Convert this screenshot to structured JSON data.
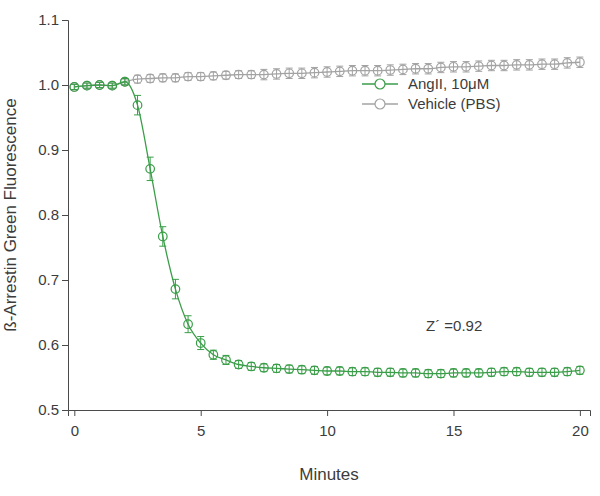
{
  "chart_data": {
    "type": "line",
    "x_label": "Minutes",
    "y_label": "ß-Arrestin Green Fluorescence",
    "annotation": "Z´ =0.92",
    "x": [
      0,
      0.5,
      1,
      1.5,
      2,
      2.5,
      3,
      3.5,
      4,
      4.5,
      5,
      5.5,
      6,
      6.5,
      7,
      7.5,
      8,
      8.5,
      9,
      9.5,
      10,
      10.5,
      11,
      11.5,
      12,
      12.5,
      13,
      13.5,
      14,
      14.5,
      15,
      15.5,
      16,
      16.5,
      17,
      17.5,
      18,
      18.5,
      19,
      19.5,
      20
    ],
    "series": [
      {
        "name": "AngII, 10μM",
        "color": "#3a9e48",
        "marker": "circle",
        "line_style": "solid",
        "values": [
          0.997,
          0.999,
          1.0,
          0.999,
          1.005,
          0.969,
          0.871,
          0.767,
          0.686,
          0.632,
          0.603,
          0.585,
          0.577,
          0.57,
          0.567,
          0.565,
          0.564,
          0.563,
          0.562,
          0.561,
          0.56,
          0.56,
          0.559,
          0.559,
          0.558,
          0.558,
          0.557,
          0.557,
          0.556,
          0.556,
          0.557,
          0.557,
          0.557,
          0.558,
          0.559,
          0.559,
          0.558,
          0.558,
          0.558,
          0.559,
          0.561
        ],
        "errors": [
          0.004,
          0.004,
          0.004,
          0.004,
          0.005,
          0.015,
          0.018,
          0.015,
          0.015,
          0.013,
          0.01,
          0.007,
          0.007,
          0.006,
          0.006,
          0.006,
          0.006,
          0.006,
          0.006,
          0.006,
          0.006,
          0.006,
          0.006,
          0.006,
          0.006,
          0.006,
          0.006,
          0.006,
          0.006,
          0.006,
          0.006,
          0.006,
          0.006,
          0.006,
          0.006,
          0.006,
          0.006,
          0.006,
          0.006,
          0.006,
          0.006
        ]
      },
      {
        "name": "Vehicle (PBS)",
        "color": "#a3a3a3",
        "marker": "circle",
        "line_style": "solid",
        "values": [
          0.997,
          0.999,
          1.0,
          0.999,
          1.005,
          1.009,
          1.01,
          1.011,
          1.011,
          1.013,
          1.013,
          1.014,
          1.015,
          1.016,
          1.016,
          1.016,
          1.017,
          1.018,
          1.018,
          1.019,
          1.02,
          1.021,
          1.022,
          1.022,
          1.022,
          1.023,
          1.024,
          1.025,
          1.025,
          1.027,
          1.028,
          1.028,
          1.029,
          1.03,
          1.03,
          1.031,
          1.031,
          1.032,
          1.032,
          1.034,
          1.035
        ],
        "errors": [
          0.004,
          0.004,
          0.004,
          0.004,
          0.004,
          0.006,
          0.006,
          0.006,
          0.006,
          0.006,
          0.006,
          0.006,
          0.006,
          0.006,
          0.006,
          0.008,
          0.008,
          0.008,
          0.008,
          0.008,
          0.008,
          0.008,
          0.008,
          0.008,
          0.008,
          0.008,
          0.008,
          0.008,
          0.008,
          0.008,
          0.008,
          0.008,
          0.008,
          0.008,
          0.008,
          0.008,
          0.008,
          0.008,
          0.008,
          0.008,
          0.008
        ]
      }
    ],
    "xlim": [
      -0.25,
      20.4
    ],
    "ylim": [
      0.5,
      1.1
    ],
    "xticks": [
      0,
      5,
      10,
      15,
      20
    ],
    "yticks": [
      0.5,
      0.6,
      0.7,
      0.8,
      0.9,
      {
        "value": 1,
        "label": "1.0"
      },
      1.1
    ],
    "legend": "upper right",
    "grid": false
  }
}
